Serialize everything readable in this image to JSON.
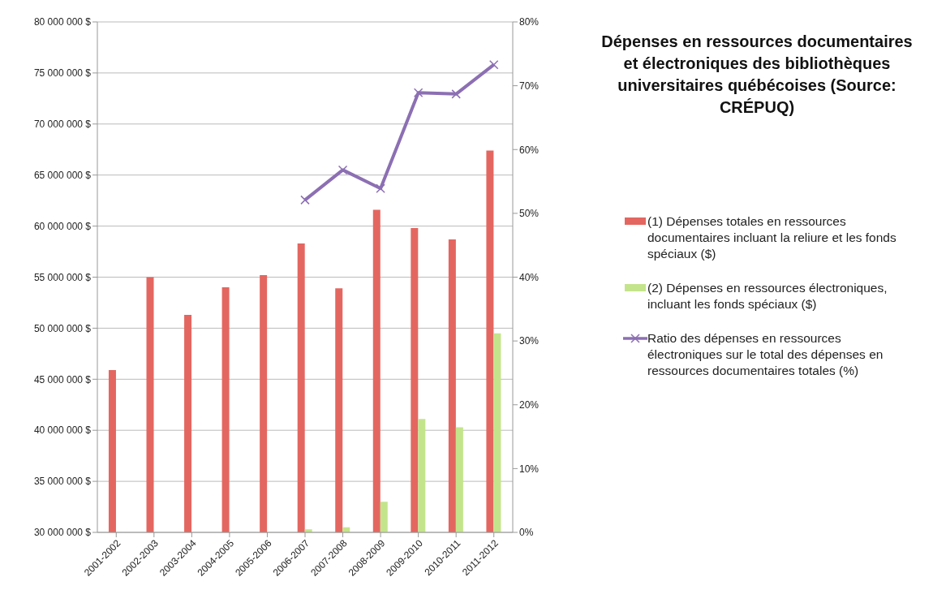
{
  "chart_data": {
    "type": "bar",
    "title": "Dépenses en ressources documentaires et électroniques des bibliothèques universitaires québécoises (Source: CRÉPUQ)",
    "categories": [
      "2001-2002",
      "2002-2003",
      "2003-2004",
      "2004-2005",
      "2005-2006",
      "2006-2007",
      "2007-2008",
      "2008-2009",
      "2009-2010",
      "2010-2011",
      "2011-2012"
    ],
    "series": [
      {
        "name": "(1) Dépenses totales en ressources documentaires incluant la reliure et les fonds spéciaux ($)",
        "color": "#e46660",
        "values": [
          45900000,
          55000000,
          51300000,
          54000000,
          55200000,
          58300000,
          53900000,
          61600000,
          59800000,
          58700000,
          67400000
        ]
      },
      {
        "name": "(2) Dépenses en ressources électroniques, incluant les fonds spéciaux ($)",
        "color": "#c4e48c",
        "values": [
          null,
          null,
          null,
          null,
          null,
          30300000,
          30500000,
          33000000,
          41100000,
          40300000,
          49500000
        ]
      },
      {
        "name": "Ratio des dépenses en ressources électroniques sur le total des dépenses en ressources documentaires totales (%)",
        "type": "line",
        "axis": "y2",
        "color": "#8c6fb3",
        "marker": "cross",
        "line_style": "solid",
        "values": [
          null,
          null,
          null,
          null,
          null,
          52.1,
          56.8,
          53.9,
          68.9,
          68.7,
          73.3
        ]
      }
    ],
    "ylim": [
      30000000,
      80000000
    ],
    "yticks": [
      {
        "value": 30000000,
        "label": "30 000 000 $"
      },
      {
        "value": 35000000,
        "label": "35 000 000 $"
      },
      {
        "value": 40000000,
        "label": "40 000 000 $"
      },
      {
        "value": 45000000,
        "label": "45 000 000 $"
      },
      {
        "value": 50000000,
        "label": "50 000 000 $"
      },
      {
        "value": 55000000,
        "label": "55 000 000 $"
      },
      {
        "value": 60000000,
        "label": "60 000 000 $"
      },
      {
        "value": 65000000,
        "label": "65 000 000 $"
      },
      {
        "value": 70000000,
        "label": "70 000 000 $"
      },
      {
        "value": 75000000,
        "label": "75 000 000 $"
      },
      {
        "value": 80000000,
        "label": "80 000 000 $"
      }
    ],
    "y2lim": [
      0,
      80
    ],
    "y2ticks": [
      {
        "value": 0,
        "label": "0%"
      },
      {
        "value": 10,
        "label": "10%"
      },
      {
        "value": 20,
        "label": "20%"
      },
      {
        "value": 30,
        "label": "30%"
      },
      {
        "value": 40,
        "label": "40%"
      },
      {
        "value": 50,
        "label": "50%"
      },
      {
        "value": 60,
        "label": "60%"
      },
      {
        "value": 70,
        "label": "70%"
      },
      {
        "value": 80,
        "label": "80%"
      }
    ],
    "grid": "y",
    "legend": "right"
  }
}
